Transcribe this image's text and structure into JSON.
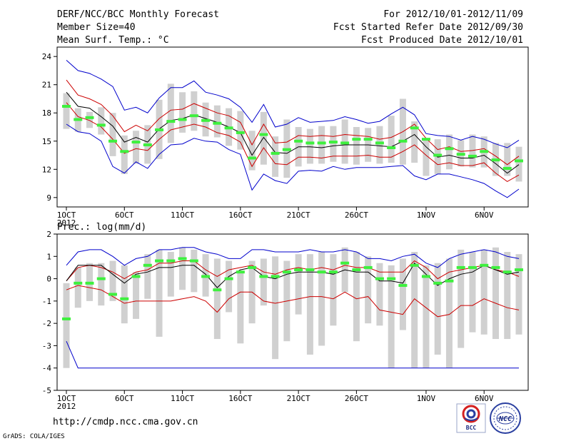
{
  "header": {
    "title": "DERF/NCC/BCC Monthly Forecast",
    "member_size": "Member Size=40",
    "variable": "Mean Surf. Temp.: °C",
    "period": "For 2012/10/01-2012/11/09",
    "fcst_started": "Fcst Started Refer Date 2012/09/30",
    "fcst_produced": "Fcst Produced Date 2012/10/01"
  },
  "footer": {
    "url": "http://cmdp.ncc.cma.gov.cn",
    "credit": "GrADS: COLA/IGES",
    "logo1_text": "BCC",
    "logo2_text": "NCC"
  },
  "colors": {
    "box": "#d0d0d0",
    "median": "#3ef03e",
    "mean": "#000000",
    "spread": "#cc0000",
    "envelope": "#0000cc"
  },
  "chart_data": [
    {
      "type": "box-line",
      "title": "Mean Surf. Temp.: °C",
      "x": [
        1,
        2,
        3,
        4,
        5,
        6,
        7,
        8,
        9,
        10,
        11,
        12,
        13,
        14,
        15,
        16,
        17,
        18,
        19,
        20,
        21,
        22,
        23,
        24,
        25,
        26,
        27,
        28,
        29,
        30,
        31,
        32,
        33,
        34,
        35,
        36,
        37,
        38,
        39,
        40
      ],
      "xtick_positions": [
        1,
        6,
        11,
        16,
        21,
        26,
        32,
        37
      ],
      "xtick_labels": [
        "1OCT",
        "6OCT",
        "11OCT",
        "16OCT",
        "21OCT",
        "26OCT",
        "1NOV",
        "6NOV"
      ],
      "xtick_sublabel": "2012",
      "xlim": [
        0.2,
        40.8
      ],
      "ylim": [
        8,
        25
      ],
      "yticks": [
        9,
        12,
        15,
        18,
        21,
        24
      ],
      "box_low": [
        16.3,
        16.0,
        16.4,
        15.7,
        13.4,
        11.5,
        12.6,
        12.6,
        13.1,
        14.8,
        15.9,
        16.1,
        15.5,
        15.4,
        14.5,
        14.1,
        11.9,
        12.5,
        11.2,
        11.1,
        12.3,
        12.6,
        12.6,
        12.8,
        12.6,
        12.5,
        12.8,
        12.6,
        12.7,
        12.5,
        12.7,
        11.3,
        11.5,
        12.0,
        12.3,
        12.2,
        12.2,
        11.3,
        11.3,
        10.7
      ],
      "box_high": [
        20.1,
        18.5,
        18.1,
        18.6,
        18.0,
        15.6,
        16.1,
        16.7,
        19.4,
        21.1,
        20.2,
        20.3,
        19.1,
        18.8,
        18.5,
        18.2,
        16.1,
        18.1,
        15.5,
        17.3,
        16.5,
        16.3,
        16.6,
        16.6,
        17.3,
        16.5,
        16.4,
        16.6,
        17.7,
        19.5,
        17.1,
        15.3,
        15.2,
        15.7,
        15.1,
        15.7,
        15.5,
        14.8,
        14.8,
        14.4
      ],
      "median": [
        18.7,
        17.3,
        17.5,
        16.7,
        15.0,
        13.9,
        14.9,
        14.6,
        16.2,
        17.1,
        17.3,
        17.7,
        17.2,
        16.9,
        16.4,
        15.9,
        13.2,
        15.7,
        13.7,
        14.1,
        15.0,
        14.8,
        14.8,
        14.9,
        14.8,
        15.2,
        15.2,
        14.8,
        14.3,
        15.0,
        16.4,
        15.2,
        13.5,
        14.2,
        13.6,
        13.4,
        13.9,
        13.0,
        12.1,
        12.9
      ],
      "series": [
        {
          "name": "max",
          "color": "#0000cc",
          "values": [
            23.6,
            22.5,
            22.2,
            21.6,
            20.8,
            18.3,
            18.6,
            18.0,
            19.6,
            20.7,
            20.7,
            21.4,
            20.2,
            19.9,
            19.5,
            18.6,
            17.0,
            18.9,
            16.5,
            16.8,
            17.5,
            17.0,
            17.1,
            17.2,
            17.6,
            17.3,
            16.9,
            17.1,
            17.9,
            18.6,
            17.8,
            15.8,
            15.6,
            15.5,
            15.1,
            15.5,
            15.2,
            14.7,
            14.3,
            15.1
          ]
        },
        {
          "name": "mean+1sd",
          "color": "#cc0000",
          "values": [
            21.5,
            19.9,
            19.5,
            18.9,
            17.7,
            16.0,
            16.7,
            16.1,
            17.4,
            18.3,
            18.4,
            19.0,
            18.5,
            18.0,
            17.7,
            17.0,
            14.6,
            16.8,
            14.8,
            14.9,
            15.6,
            15.5,
            15.6,
            15.5,
            15.7,
            15.6,
            15.5,
            15.2,
            15.4,
            16.0,
            16.8,
            15.3,
            14.1,
            14.4,
            13.9,
            14.0,
            14.2,
            13.4,
            12.5,
            13.4
          ]
        },
        {
          "name": "mean",
          "color": "#000000",
          "values": [
            20.2,
            18.7,
            18.5,
            17.6,
            16.6,
            14.9,
            15.4,
            14.9,
            16.3,
            17.2,
            17.4,
            17.8,
            17.4,
            17.0,
            16.5,
            15.9,
            13.5,
            15.4,
            13.8,
            13.7,
            14.4,
            14.4,
            14.3,
            14.5,
            14.6,
            14.6,
            14.6,
            14.5,
            14.4,
            15.0,
            15.7,
            14.4,
            13.3,
            13.5,
            13.2,
            13.2,
            13.5,
            12.6,
            11.6,
            12.5
          ]
        },
        {
          "name": "mean-1sd",
          "color": "#cc0000",
          "values": [
            19.1,
            17.6,
            17.2,
            16.5,
            15.2,
            13.7,
            14.2,
            14.0,
            15.2,
            16.2,
            16.5,
            16.8,
            16.5,
            15.9,
            15.6,
            14.9,
            12.3,
            14.3,
            12.6,
            12.5,
            13.3,
            13.3,
            13.2,
            13.4,
            13.4,
            13.4,
            13.5,
            13.3,
            13.3,
            13.9,
            14.6,
            13.5,
            12.5,
            12.7,
            12.4,
            12.4,
            12.7,
            11.6,
            10.7,
            11.4
          ]
        },
        {
          "name": "min",
          "color": "#0000cc",
          "values": [
            16.8,
            16.0,
            15.8,
            15.0,
            12.3,
            11.6,
            12.8,
            12.1,
            13.6,
            14.6,
            14.7,
            15.3,
            15.0,
            14.9,
            14.1,
            13.6,
            9.8,
            11.5,
            10.8,
            10.5,
            11.8,
            11.9,
            11.8,
            12.3,
            12.0,
            12.2,
            12.2,
            12.2,
            12.3,
            12.4,
            11.3,
            10.9,
            11.5,
            11.5,
            11.2,
            10.9,
            10.5,
            9.7,
            9.0,
            9.9
          ]
        }
      ]
    },
    {
      "type": "box-line",
      "title": "Prec.: log(mm/d)",
      "x": [
        1,
        2,
        3,
        4,
        5,
        6,
        7,
        8,
        9,
        10,
        11,
        12,
        13,
        14,
        15,
        16,
        17,
        18,
        19,
        20,
        21,
        22,
        23,
        24,
        25,
        26,
        27,
        28,
        29,
        30,
        31,
        32,
        33,
        34,
        35,
        36,
        37,
        38,
        39,
        40
      ],
      "xtick_positions": [
        1,
        6,
        11,
        16,
        21,
        26,
        32,
        37
      ],
      "xtick_labels": [
        "1OCT",
        "6OCT",
        "11OCT",
        "16OCT",
        "21OCT",
        "26OCT",
        "1NOV",
        "6NOV"
      ],
      "xtick_sublabel": "2012",
      "xlim": [
        0.2,
        40.8
      ],
      "ylim": [
        -5,
        2
      ],
      "yticks": [
        -5,
        -4,
        -3,
        -2,
        -1,
        0,
        1,
        2
      ],
      "box_low": [
        -4.0,
        -1.3,
        -1.0,
        -1.2,
        -1.0,
        -2.0,
        -1.8,
        -0.9,
        -2.6,
        -0.8,
        -0.5,
        -0.6,
        -0.8,
        -2.7,
        -1.5,
        -2.9,
        -2.0,
        -1.2,
        -3.6,
        -2.8,
        -1.6,
        -3.4,
        -3.0,
        -2.1,
        -0.6,
        -2.8,
        -2.0,
        -2.1,
        -4.0,
        -2.3,
        -4.0,
        -4.0,
        -3.4,
        -4.0,
        -3.1,
        -2.4,
        -2.5,
        -2.7,
        -2.7,
        -2.5
      ],
      "box_high": [
        -0.2,
        0.5,
        0.7,
        0.7,
        0.8,
        0.6,
        0.3,
        1.1,
        1.3,
        1.2,
        1.4,
        1.3,
        1.1,
        0.9,
        0.8,
        0.3,
        0.8,
        0.9,
        1.0,
        0.8,
        1.1,
        1.1,
        1.2,
        1.1,
        1.4,
        1.2,
        1.0,
        0.7,
        0.6,
        0.9,
        1.2,
        0.6,
        0.7,
        0.9,
        1.3,
        1.2,
        1.3,
        1.4,
        1.2,
        1.1
      ],
      "median": [
        -1.8,
        -0.2,
        -0.2,
        -0.0,
        -0.7,
        -0.9,
        0.1,
        0.6,
        0.8,
        0.8,
        0.9,
        0.8,
        0.1,
        -0.5,
        0.0,
        0.3,
        0.5,
        0.1,
        0.1,
        0.3,
        0.4,
        0.4,
        0.3,
        0.3,
        0.7,
        0.4,
        0.5,
        0.0,
        0.0,
        -0.3,
        0.6,
        0.1,
        -0.2,
        -0.1,
        0.5,
        0.5,
        0.6,
        0.5,
        0.3,
        0.4
      ],
      "series": [
        {
          "name": "max",
          "color": "#0000cc",
          "values": [
            0.6,
            1.2,
            1.3,
            1.3,
            1.0,
            0.6,
            0.9,
            1.0,
            1.3,
            1.3,
            1.4,
            1.4,
            1.2,
            1.1,
            0.9,
            0.9,
            1.3,
            1.3,
            1.2,
            1.2,
            1.2,
            1.3,
            1.2,
            1.2,
            1.3,
            1.2,
            0.9,
            0.9,
            0.8,
            1.0,
            1.1,
            0.7,
            0.5,
            0.9,
            1.1,
            1.2,
            1.3,
            1.2,
            1.0,
            0.9
          ]
        },
        {
          "name": "mean+1sd",
          "color": "#cc0000",
          "values": [
            -0.1,
            0.5,
            0.6,
            0.5,
            0.3,
            -0.0,
            0.3,
            0.4,
            0.7,
            0.7,
            0.8,
            0.8,
            0.4,
            0.1,
            0.4,
            0.5,
            0.6,
            0.3,
            0.2,
            0.4,
            0.5,
            0.4,
            0.5,
            0.4,
            0.6,
            0.5,
            0.5,
            0.3,
            0.3,
            0.3,
            0.8,
            0.5,
            0.0,
            0.3,
            0.4,
            0.5,
            0.6,
            0.4,
            0.3,
            0.1
          ]
        },
        {
          "name": "mean",
          "color": "#000000",
          "values": [
            -0.1,
            0.6,
            0.6,
            0.6,
            0.2,
            -0.2,
            0.2,
            0.3,
            0.5,
            0.5,
            0.6,
            0.6,
            0.2,
            -0.4,
            0.1,
            0.4,
            0.5,
            0.1,
            0.0,
            0.2,
            0.3,
            0.3,
            0.3,
            0.2,
            0.4,
            0.3,
            0.3,
            -0.1,
            -0.1,
            -0.2,
            0.7,
            0.2,
            -0.3,
            -0.0,
            0.2,
            0.3,
            0.6,
            0.4,
            0.2,
            0.3
          ]
        },
        {
          "name": "mean-1sd",
          "color": "#cc0000",
          "values": [
            -0.5,
            -0.3,
            -0.4,
            -0.5,
            -0.8,
            -1.1,
            -1.0,
            -1.0,
            -1.0,
            -1.0,
            -0.9,
            -0.8,
            -1.0,
            -1.5,
            -0.9,
            -0.6,
            -0.6,
            -1.0,
            -1.1,
            -1.0,
            -0.9,
            -0.8,
            -0.8,
            -0.9,
            -0.6,
            -0.9,
            -0.8,
            -1.4,
            -1.5,
            -1.6,
            -0.9,
            -1.3,
            -1.7,
            -1.6,
            -1.2,
            -1.2,
            -0.9,
            -1.1,
            -1.3,
            -1.4
          ]
        },
        {
          "name": "min",
          "color": "#0000cc",
          "values": [
            -2.8,
            -4.0,
            -4.0,
            -4.0,
            -4.0,
            -4.0,
            -4.0,
            -4.0,
            -4.0,
            -4.0,
            -4.0,
            -4.0,
            -4.0,
            -4.0,
            -4.0,
            -4.0,
            -4.0,
            -4.0,
            -4.0,
            -4.0,
            -4.0,
            -4.0,
            -4.0,
            -4.0,
            -4.0,
            -4.0,
            -4.0,
            -4.0,
            -4.0,
            -4.0,
            -4.0,
            -4.0,
            -4.0,
            -4.0,
            -4.0,
            -4.0,
            -4.0,
            -4.0,
            -4.0,
            -4.0
          ]
        }
      ]
    }
  ]
}
